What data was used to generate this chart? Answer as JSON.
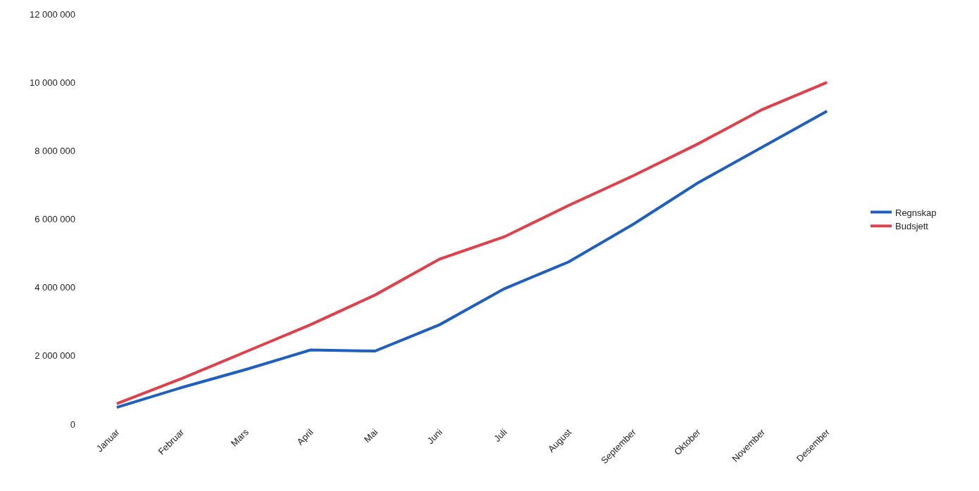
{
  "chart_data": {
    "type": "line",
    "categories": [
      "Januar",
      "Februar",
      "Mars",
      "April",
      "Mai",
      "Juni",
      "Juli",
      "August",
      "September",
      "Oktober",
      "November",
      "Desember"
    ],
    "series": [
      {
        "name": "Regnskap",
        "color": "#1f5fbf",
        "values": [
          490000,
          1070000,
          1600000,
          2170000,
          2140000,
          2910000,
          3960000,
          4750000,
          5850000,
          7060000,
          8110000,
          9160000
        ]
      },
      {
        "name": "Budsjett",
        "color": "#e0404a",
        "values": [
          600000,
          1330000,
          2120000,
          2910000,
          3780000,
          4830000,
          5480000,
          6400000,
          7270000,
          8200000,
          9210000,
          10000000
        ]
      }
    ],
    "ylim": [
      0,
      12000000
    ],
    "yticks": [
      {
        "value": 0,
        "label": "0"
      },
      {
        "value": 2000000,
        "label": "2 000 000"
      },
      {
        "value": 4000000,
        "label": "4 000 000"
      },
      {
        "value": 6000000,
        "label": "6 000 000"
      },
      {
        "value": 8000000,
        "label": "8 000 000"
      },
      {
        "value": 10000000,
        "label": "10 000 000"
      },
      {
        "value": 12000000,
        "label": "12 000 000"
      }
    ],
    "grid": false,
    "legend": "right",
    "marker": "none",
    "line_style": "solid"
  }
}
